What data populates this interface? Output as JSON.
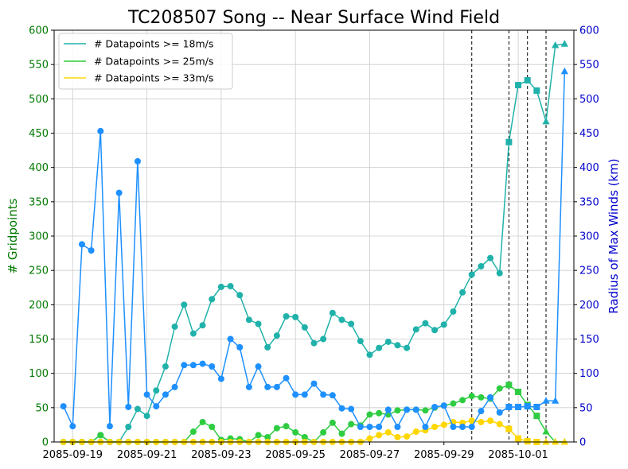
{
  "chart_data": {
    "type": "line",
    "title": "TC208507 Song -- Near Surface Wind Field",
    "ylabel_left": "# Gridpoints",
    "ylabel_right": "Radius of Max Winds (km)",
    "ylim_left": [
      0,
      600
    ],
    "ylim_right": [
      0,
      600
    ],
    "xlim": [
      "2085-09-18 12:00",
      "2085-10-02 12:00"
    ],
    "x_ticks": [
      "2085-09-19",
      "2085-09-21",
      "2085-09-23",
      "2085-09-25",
      "2085-09-27",
      "2085-09-29",
      "2085-10-01"
    ],
    "y_ticks_left": [
      0,
      50,
      100,
      150,
      200,
      250,
      300,
      350,
      400,
      450,
      500,
      550,
      600
    ],
    "y_ticks_right": [
      0,
      50,
      100,
      150,
      200,
      250,
      300,
      350,
      400,
      450,
      500,
      550,
      600
    ],
    "grid": true,
    "legend_position": "top-left",
    "time_step_hours": 6,
    "start_time": "2085-09-18 18:00",
    "vertical_markers": [
      "2085-09-29 18:00",
      "2085-09-30 18:00",
      "2085-10-01 06:00",
      "2085-10-01 18:00"
    ],
    "colors": {
      "left_axis": "#007800",
      "right_axis": "#0000cc",
      "marker_line": "#000000"
    },
    "series": [
      {
        "name": "# Datapoints >= 18m/s",
        "axis": "left",
        "color": "#20b2aa",
        "values": [
          0,
          0,
          0,
          0,
          10,
          0,
          0,
          22,
          48,
          38,
          75,
          110,
          168,
          200,
          158,
          170,
          208,
          226,
          227,
          214,
          178,
          172,
          138,
          155,
          183,
          182,
          167,
          144,
          150,
          188,
          178,
          172,
          147,
          127,
          137,
          146,
          141,
          137,
          164,
          173,
          163,
          171,
          190,
          218,
          244,
          256,
          268,
          246,
          437,
          520,
          527,
          512,
          467,
          578,
          580
        ],
        "markers": [
          "o",
          "o",
          "o",
          "o",
          "o",
          "o",
          "o",
          "o",
          "o",
          "o",
          "o",
          "o",
          "o",
          "o",
          "o",
          "o",
          "o",
          "o",
          "o",
          "o",
          "o",
          "o",
          "o",
          "o",
          "o",
          "o",
          "o",
          "o",
          "o",
          "o",
          "o",
          "o",
          "o",
          "o",
          "o",
          "o",
          "o",
          "o",
          "o",
          "o",
          "o",
          "o",
          "o",
          "o",
          "o",
          "o",
          "o",
          "o",
          "s",
          "s",
          "s",
          "s",
          "^",
          "^",
          "^"
        ]
      },
      {
        "name": "# Datapoints >= 25m/s",
        "axis": "left",
        "color": "#2ecc40",
        "values": [
          0,
          0,
          0,
          0,
          10,
          0,
          0,
          0,
          0,
          0,
          0,
          0,
          0,
          0,
          15,
          29,
          22,
          3,
          5,
          4,
          0,
          10,
          7,
          20,
          23,
          14,
          7,
          0,
          14,
          28,
          12,
          26,
          24,
          40,
          42,
          40,
          46,
          47,
          47,
          46,
          50,
          53,
          56,
          61,
          67,
          65,
          63,
          78,
          83,
          73,
          54,
          38,
          15,
          0,
          0
        ],
        "markers": [
          "o",
          "o",
          "o",
          "o",
          "o",
          "o",
          "o",
          "o",
          "o",
          "o",
          "o",
          "o",
          "o",
          "o",
          "o",
          "o",
          "o",
          "o",
          "o",
          "o",
          "o",
          "o",
          "o",
          "o",
          "o",
          "o",
          "o",
          "o",
          "o",
          "o",
          "o",
          "o",
          "o",
          "o",
          "o",
          "o",
          "o",
          "o",
          "o",
          "o",
          "o",
          "o",
          "o",
          "o",
          "o",
          "o",
          "o",
          "o",
          "s",
          "s",
          "s",
          "s",
          "^",
          "^",
          "^"
        ]
      },
      {
        "name": "# Datapoints >= 33m/s",
        "axis": "left",
        "color": "#ffd700",
        "values": [
          0,
          0,
          0,
          0,
          0,
          0,
          0,
          0,
          0,
          0,
          0,
          0,
          0,
          0,
          0,
          0,
          0,
          0,
          0,
          0,
          0,
          0,
          0,
          0,
          0,
          0,
          0,
          0,
          0,
          0,
          0,
          0,
          0,
          5,
          10,
          14,
          7,
          8,
          15,
          17,
          22,
          25,
          29,
          28,
          31,
          29,
          31,
          26,
          19,
          5,
          1,
          0,
          0,
          0,
          0
        ],
        "markers": [
          "o",
          "o",
          "o",
          "o",
          "o",
          "o",
          "o",
          "o",
          "o",
          "o",
          "o",
          "o",
          "o",
          "o",
          "o",
          "o",
          "o",
          "o",
          "o",
          "o",
          "o",
          "o",
          "o",
          "o",
          "o",
          "o",
          "o",
          "o",
          "o",
          "o",
          "o",
          "o",
          "o",
          "o",
          "o",
          "o",
          "o",
          "o",
          "o",
          "o",
          "o",
          "o",
          "o",
          "o",
          "o",
          "o",
          "o",
          "o",
          "s",
          "s",
          "s",
          "s",
          "^",
          "^",
          "^"
        ]
      },
      {
        "name": "Radius of Max Winds",
        "axis": "right",
        "color": "#1e90ff",
        "values": [
          52,
          23,
          288,
          279,
          453,
          23,
          363,
          51,
          409,
          69,
          52,
          69,
          80,
          112,
          112,
          114,
          110,
          92,
          150,
          138,
          80,
          110,
          80,
          80,
          93,
          69,
          69,
          85,
          69,
          68,
          49,
          48,
          22,
          22,
          22,
          47,
          22,
          47,
          47,
          22,
          51,
          53,
          22,
          22,
          22,
          45,
          65,
          43,
          51,
          51,
          52,
          51,
          60,
          60,
          540
        ],
        "markers": [
          "o",
          "o",
          "o",
          "o",
          "o",
          "o",
          "o",
          "o",
          "o",
          "o",
          "o",
          "o",
          "o",
          "o",
          "o",
          "o",
          "o",
          "o",
          "o",
          "o",
          "o",
          "o",
          "o",
          "o",
          "o",
          "o",
          "o",
          "o",
          "o",
          "o",
          "o",
          "o",
          "o",
          "o",
          "o",
          "o",
          "o",
          "o",
          "o",
          "o",
          "o",
          "o",
          "o",
          "o",
          "o",
          "o",
          "o",
          "o",
          "s",
          "s",
          "s",
          "s",
          "^",
          "^",
          "^"
        ]
      }
    ]
  }
}
